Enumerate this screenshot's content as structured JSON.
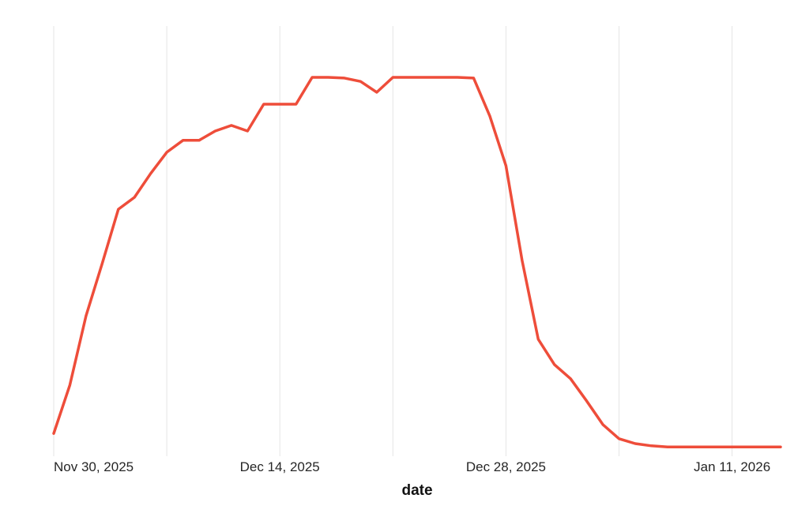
{
  "chart_data": {
    "type": "line",
    "title": "",
    "xlabel": "date",
    "ylabel": "",
    "legend_position": "none",
    "grid": "vertical gridlines at 7-day intervals, no horizontal gridlines",
    "y_axis_visible": false,
    "value_note": "y-axis is unlabeled in the image; values are relative estimates normalized so the plateau peak = 100",
    "line_color": "#ee4d3a",
    "gridline_color": "#e5e5e5",
    "label_color": "#262626",
    "title_color": "#111111",
    "x_tick_labels": [
      "Nov 30, 2025",
      "Dec 14, 2025",
      "Dec 28, 2025",
      "Jan 11, 2026"
    ],
    "x_tick_dates": [
      "2025-11-30",
      "2025-12-14",
      "2025-12-28",
      "2026-01-11"
    ],
    "x_gridline_dates": [
      "2025-11-30",
      "2025-12-07",
      "2025-12-14",
      "2025-12-21",
      "2025-12-28",
      "2026-01-04",
      "2026-01-11"
    ],
    "x_range": [
      "2025-11-30",
      "2026-01-14"
    ],
    "ylim": [
      0,
      105
    ],
    "dates": [
      "2025-11-30",
      "2025-12-01",
      "2025-12-02",
      "2025-12-03",
      "2025-12-04",
      "2025-12-05",
      "2025-12-06",
      "2025-12-07",
      "2025-12-08",
      "2025-12-09",
      "2025-12-10",
      "2025-12-11",
      "2025-12-12",
      "2025-12-13",
      "2025-12-14",
      "2025-12-15",
      "2025-12-16",
      "2025-12-17",
      "2025-12-18",
      "2025-12-19",
      "2025-12-20",
      "2025-12-21",
      "2025-12-22",
      "2025-12-23",
      "2025-12-24",
      "2025-12-25",
      "2025-12-26",
      "2025-12-27",
      "2025-12-28",
      "2025-12-29",
      "2025-12-30",
      "2025-12-31",
      "2026-01-01",
      "2026-01-02",
      "2026-01-03",
      "2026-01-04",
      "2026-01-05",
      "2026-01-06",
      "2026-01-07",
      "2026-01-08",
      "2026-01-09",
      "2026-01-10",
      "2026-01-11",
      "2026-01-12",
      "2026-01-13",
      "2026-01-14"
    ],
    "values": [
      4.4,
      17.4,
      36.0,
      50.0,
      64.6,
      67.8,
      74.2,
      79.9,
      83.1,
      83.1,
      85.6,
      87.1,
      85.6,
      92.8,
      92.8,
      92.8,
      100.0,
      100.0,
      99.8,
      98.9,
      96.0,
      100.0,
      100.0,
      100.0,
      100.0,
      100.0,
      99.8,
      89.6,
      76.3,
      50.8,
      29.7,
      22.9,
      19.1,
      13.1,
      6.8,
      3.0,
      1.7,
      1.1,
      0.8,
      0.8,
      0.8,
      0.8,
      0.8,
      0.8,
      0.8,
      0.8
    ]
  }
}
